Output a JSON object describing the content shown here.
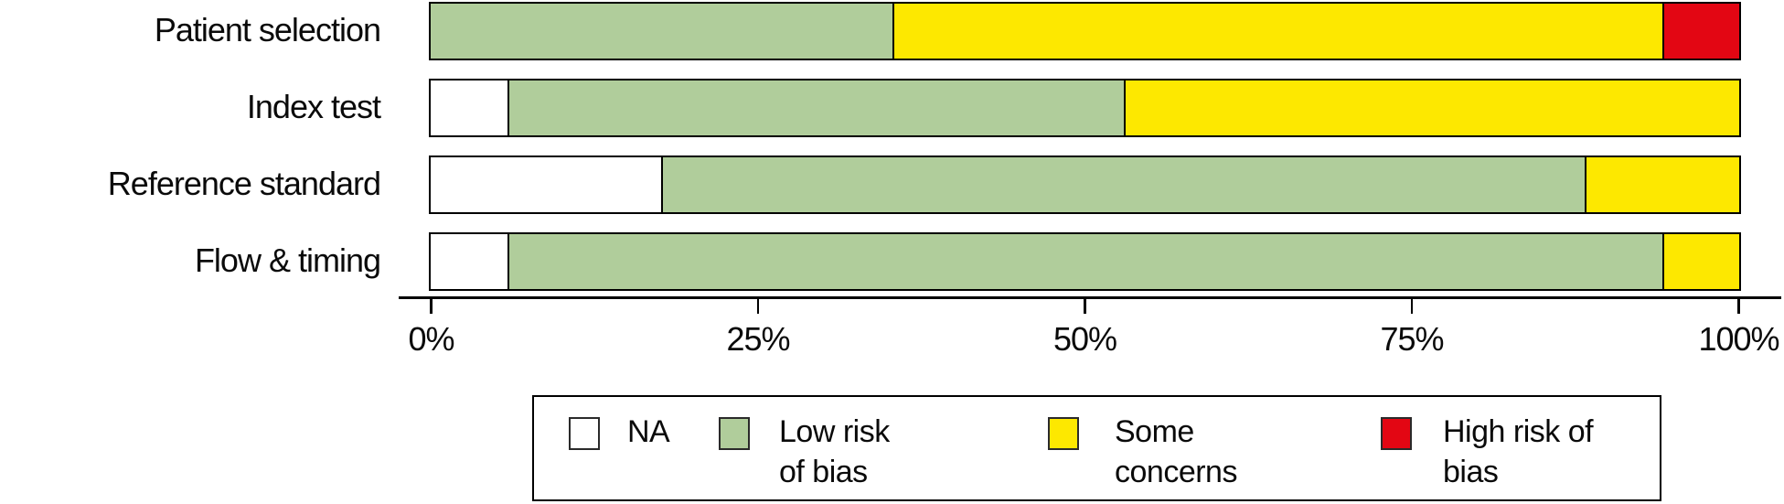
{
  "chart_data": {
    "type": "bar",
    "orientation": "horizontal-stacked",
    "title": "",
    "xlabel": "",
    "ylabel": "",
    "xlim": [
      0,
      100
    ],
    "grid": false,
    "categories": [
      "Patient selection",
      "Index test",
      "Reference standard",
      "Flow & timing"
    ],
    "series": [
      {
        "name": "NA",
        "color": "#ffffff",
        "values": [
          0,
          5.9,
          17.6,
          5.9
        ]
      },
      {
        "name": "Low risk of bias",
        "color": "#b0cd9b",
        "values": [
          35.3,
          47.1,
          70.6,
          88.2
        ]
      },
      {
        "name": "Some concerns",
        "color": "#fde800",
        "values": [
          58.8,
          47.1,
          11.8,
          5.9
        ]
      },
      {
        "name": "High risk of bias",
        "color": "#e30613",
        "values": [
          5.9,
          0,
          0,
          0
        ]
      }
    ],
    "x_ticks": [
      "0%",
      "25%",
      "50%",
      "75%",
      "100%"
    ],
    "legend": {
      "position": "bottom",
      "entries": [
        {
          "label_lines": [
            "NA"
          ],
          "color": "#ffffff"
        },
        {
          "label_lines": [
            "Low risk",
            "of bias"
          ],
          "color": "#b0cd9b"
        },
        {
          "label_lines": [
            "Some",
            "concerns"
          ],
          "color": "#fde800"
        },
        {
          "label_lines": [
            "High risk of",
            "bias"
          ],
          "color": "#e30613"
        }
      ]
    }
  },
  "colors": {
    "background": "#ffffff",
    "bar_border": "#000000",
    "axis": "#000000",
    "text": "#0a0a0a"
  }
}
